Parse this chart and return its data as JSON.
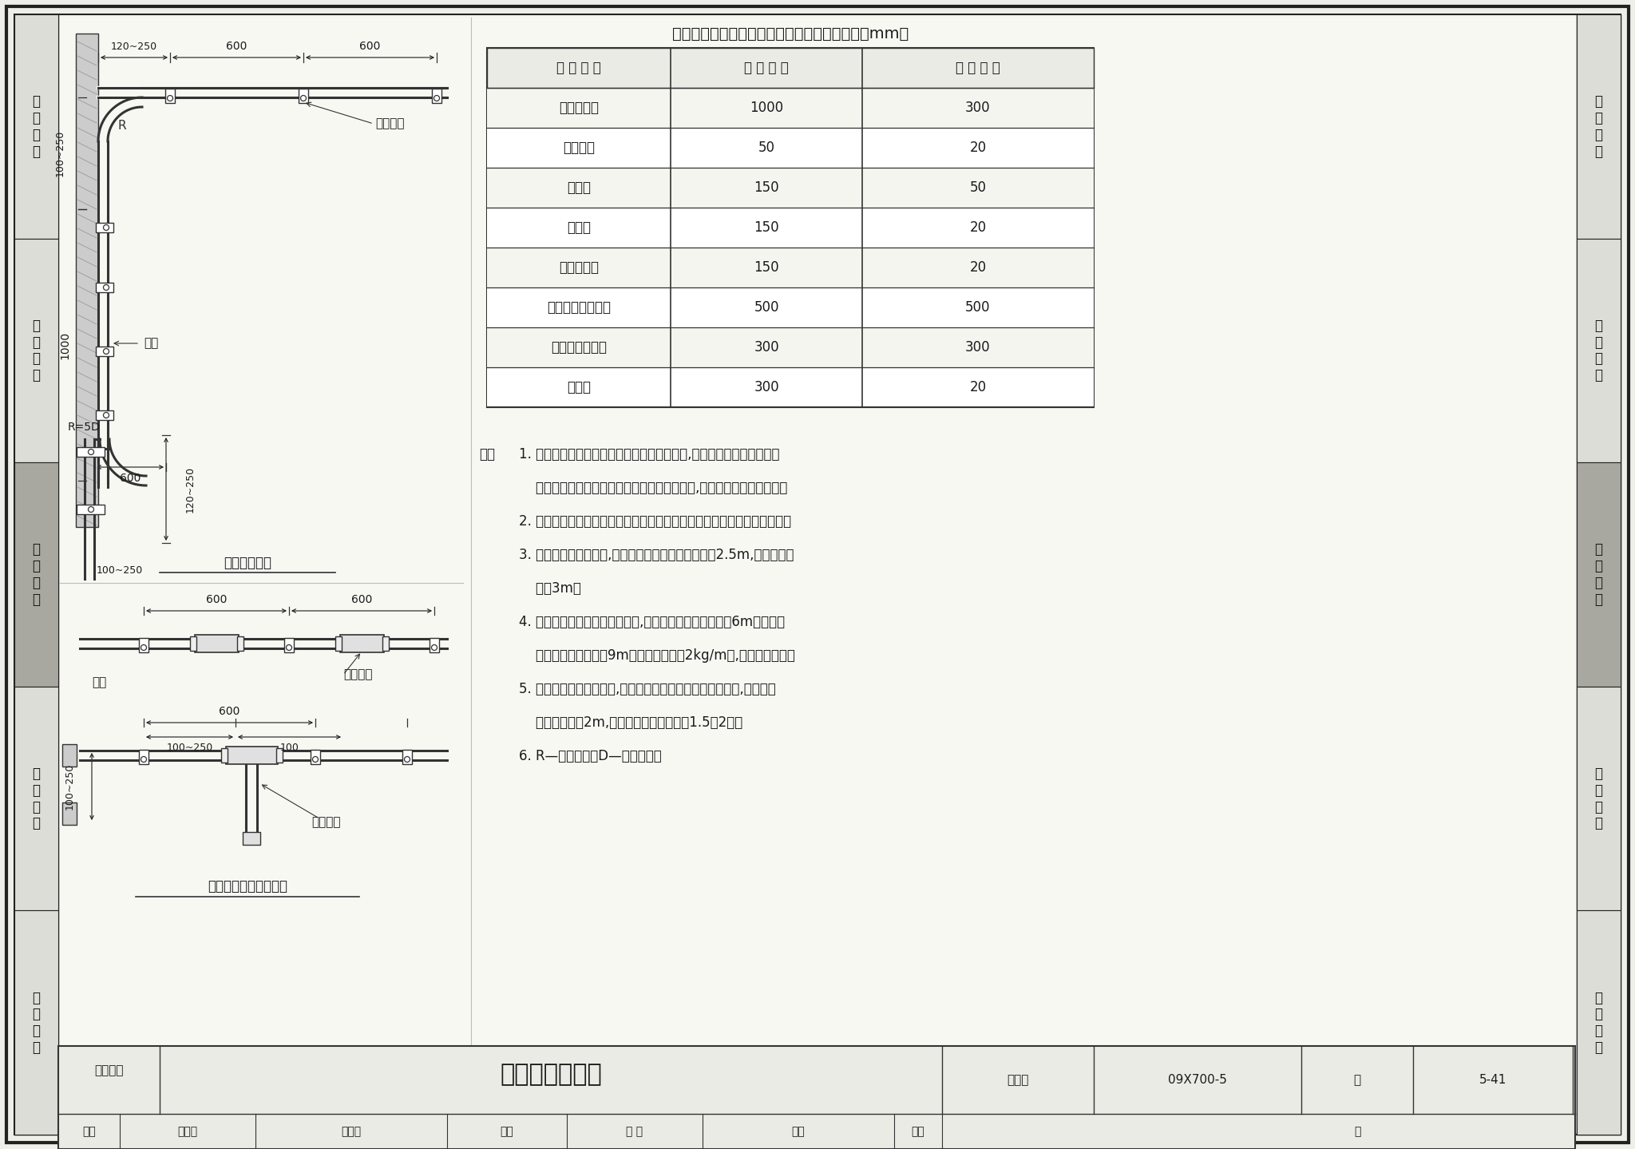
{
  "page_bg": "#efefea",
  "title": "建筑物内弱电墙壁电缆与其他管线的最小净距（mm）",
  "table_headers": [
    "其 他 管 线",
    "平 行 净 距",
    "交 叉 净 距"
  ],
  "table_rows": [
    [
      "避雷引下线",
      "1000",
      "300"
    ],
    [
      "保护地线",
      "50",
      "20"
    ],
    [
      "电力线",
      "150",
      "50"
    ],
    [
      "给水管",
      "150",
      "20"
    ],
    [
      "压缩空气管",
      "150",
      "20"
    ],
    [
      "热力管（不包封）",
      "500",
      "500"
    ],
    [
      "热力管（包封）",
      "300",
      "300"
    ],
    [
      "煤气管",
      "300",
      "20"
    ]
  ],
  "notes": [
    "1. 电缆应敷设在隐蔽和不易受外界损伤的地方,避免穿越高压、高湿、潮",
    "    湿、易腐蚀和有强烈振动的地区。必须通过时,应采取相应的保护措施。",
    "2. 电缆应尽量避免与电力线、避雷线、暖气管等容易造成危害的管线接近。",
    "3. 电缆标高应尽量一致,在办公楼及生活区内不应低于2.5m,在室外不应",
    "    低于3m。",
    "4. 吊挂式电缆在建筑物上吊挂时,吊线支持点的距离一般为6m左右。如",
    "    两建筑物间跨距大于9m或电缆重量超过2kg/m时,吊线应做终端。",
    "5. 电缆在室内穿越楼层时,电缆应采用厚壁钢管或塑料管保护,保护高度",
    "    一般不应小于2m,管子的内径为电缆外径1.5～2倍。",
    "6. R—弯曲半径，D—电缆外径。"
  ],
  "footer_cat": "缆线敷设",
  "footer_title": "电缆沿墙明敷设",
  "footer_fig_label": "图集号",
  "footer_fig_no": "09X700-5",
  "footer_page_label": "页",
  "footer_page": "5-41",
  "side_labels": [
    "机\n房\n工\n程",
    "供\n电\n电\n源",
    "缆\n线\n敷\n设",
    "设\n备\n安\n装",
    "防\n雷\n接\n地"
  ]
}
